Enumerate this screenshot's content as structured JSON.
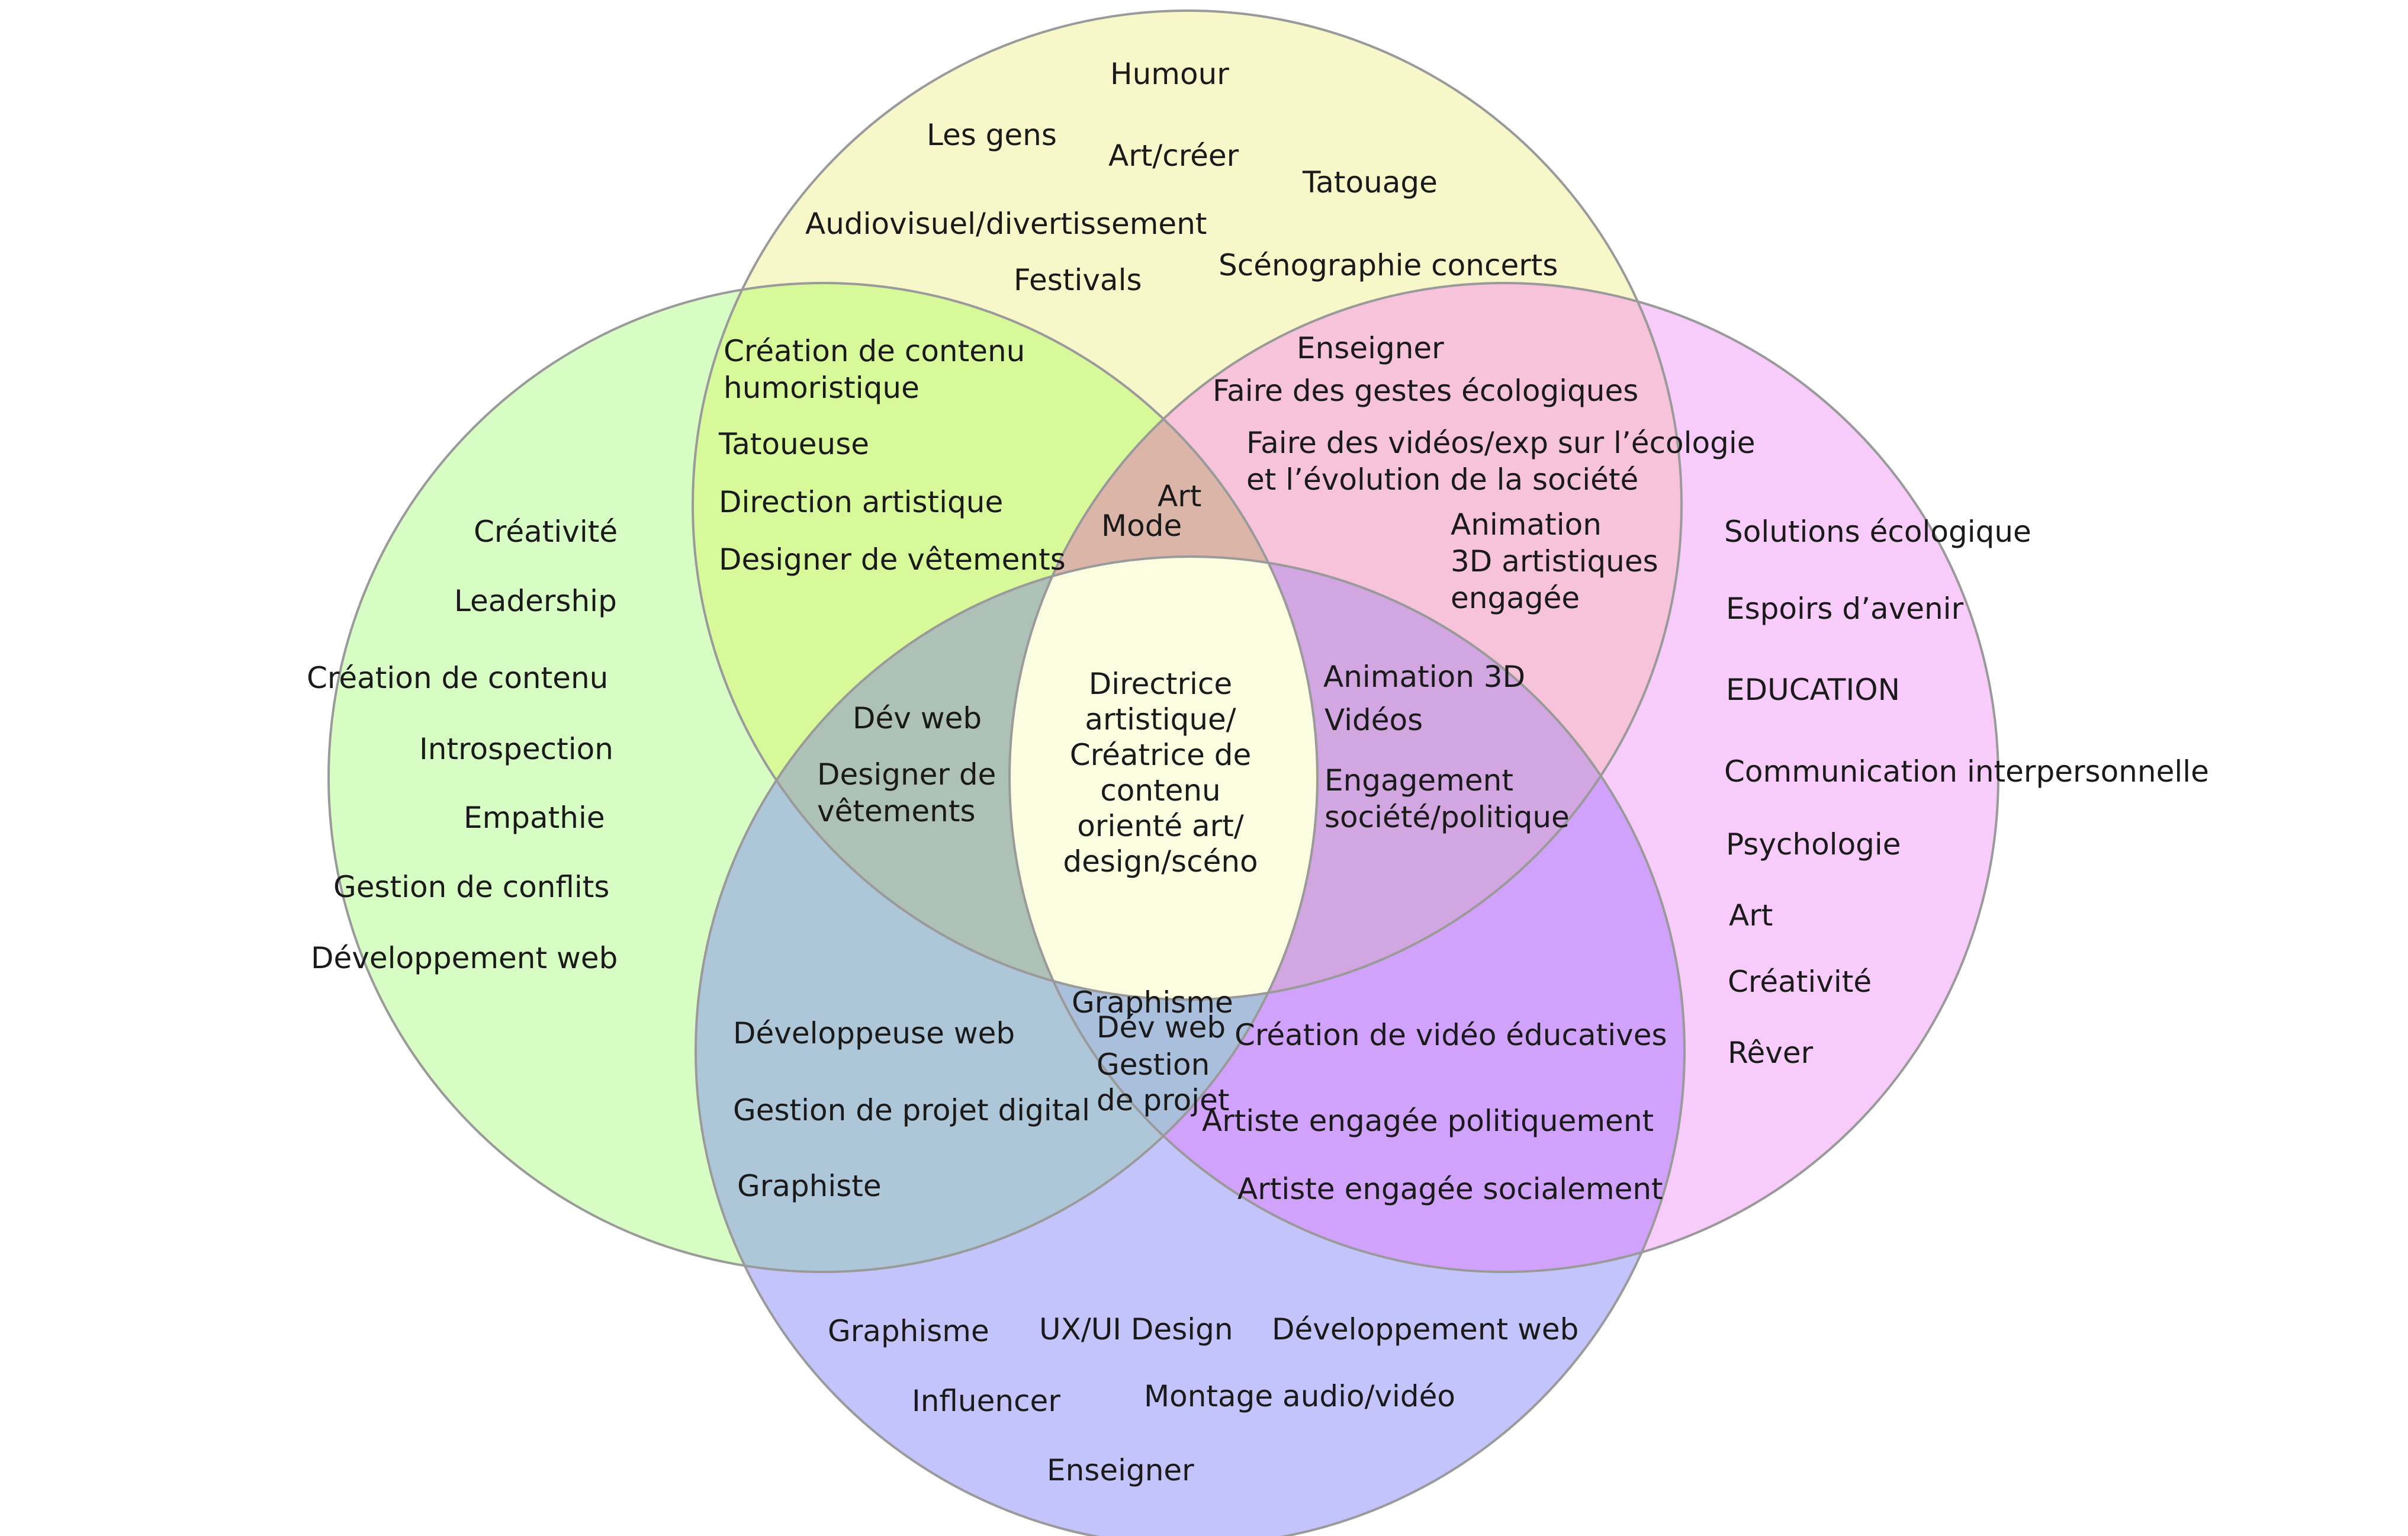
{
  "colors": {
    "green": "#d8fdc4",
    "yellow": "#f8f7c9",
    "pink": "#f8ccfa",
    "blue": "#c4c4fc",
    "green_yellow": "#d7f99a",
    "yellow_pink": "#f6c3db",
    "green_yellow_pink": "#dbb6a8",
    "green_blue": "#adc6d8",
    "pink_blue": "#d0a2fb",
    "green_yellow_blue": "#adc1b6",
    "yellow_pink_blue": "#d2a6e1",
    "green_pink_blue": "#a9bfdc",
    "center": "#fafddf",
    "stroke": "#9a9a9a"
  },
  "regions": {
    "yellow_only": [
      "Humour",
      "Les gens",
      "Art/créer",
      "Tatouage",
      "Audiovisuel/divertissement",
      "Festivals",
      "Scénographie concerts"
    ],
    "green_only": [
      "Créativité",
      "Leadership",
      "Création de contenu",
      "Introspection",
      "Empathie",
      "Gestion de conflits",
      "Développement web"
    ],
    "pink_only": [
      "Solutions écologique",
      "Espoirs d’avenir",
      "EDUCATION",
      "Communication interpersonnelle",
      "Psychologie",
      "Art",
      "Créativité",
      "Rêver"
    ],
    "blue_only": [
      "Graphisme",
      "UX/UI Design",
      "Développement web",
      "Influencer",
      "Montage audio/vidéo",
      "Enseigner"
    ],
    "green_yellow": [
      "Création de contenu",
      "humoristique",
      "Tatoueuse",
      "Direction artistique",
      "Designer de vêtements"
    ],
    "yellow_pink": [
      "Enseigner",
      "Faire des gestes écologiques",
      "Faire des vidéos/exp sur l’écologie",
      "et l’évolution de la société",
      "Animation",
      "3D artistiques",
      "engagée"
    ],
    "green_yellow_pink": [
      "Art",
      "Mode"
    ],
    "green_yellow_blue": [
      "Dév web",
      "Designer de",
      "vêtements"
    ],
    "yellow_pink_blue": [
      "Animation 3D",
      "Vidéos",
      "Engagement",
      "société/politique"
    ],
    "center": [
      "Directrice",
      "artistique/",
      "Créatrice de",
      "contenu",
      "orienté art/",
      "design/scéno"
    ],
    "green_blue": [
      "Développeuse web",
      "Gestion de projet digital",
      "Graphiste"
    ],
    "green_pink_blue": [
      "Graphisme",
      "Dév web",
      "Gestion",
      "de projet"
    ],
    "pink_blue": [
      "Création de vidéo éducatives",
      "Artiste engagée politiquement",
      "Artiste engagée socialement"
    ]
  }
}
